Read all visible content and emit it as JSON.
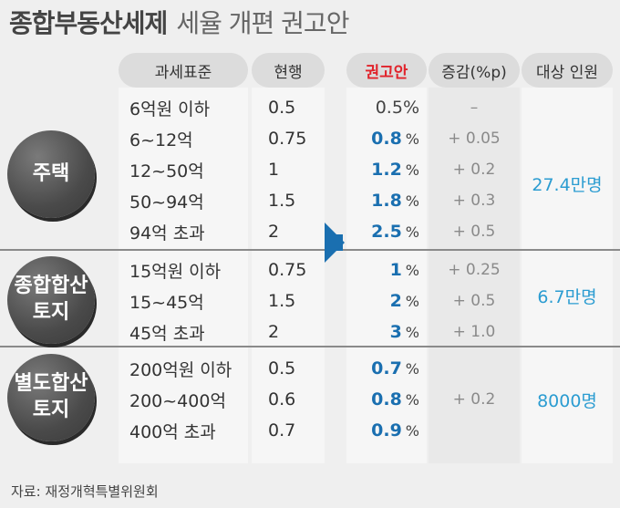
{
  "title": {
    "main": "종합부동산세제",
    "rest": "세율 개편 권고안"
  },
  "source": "자료: 재정개혁특별위원회",
  "headers": {
    "bracket": "과세표준",
    "current": "현행",
    "proposal": "권고안",
    "change": "증감(%p)",
    "target": "대상 인원"
  },
  "groups": [
    {
      "label_lines": [
        "주택"
      ],
      "target": "27.4만명",
      "rows": [
        {
          "bracket": "6억원 이하",
          "current": "0.5",
          "proposal": "0.5",
          "proposal_highlight": false,
          "change": "–"
        },
        {
          "bracket": "6~12억",
          "current": "0.75",
          "proposal": "0.8",
          "proposal_highlight": true,
          "change": "+ 0.05"
        },
        {
          "bracket": "12~50억",
          "current": "1",
          "proposal": "1.2",
          "proposal_highlight": true,
          "change": "+ 0.2"
        },
        {
          "bracket": "50~94억",
          "current": "1.5",
          "proposal": "1.8",
          "proposal_highlight": true,
          "change": "+ 0.3"
        },
        {
          "bracket": "94억 초과",
          "current": "2",
          "proposal": "2.5",
          "proposal_highlight": true,
          "change": "+ 0.5"
        }
      ]
    },
    {
      "label_lines": [
        "종합합산",
        "토지"
      ],
      "target": "6.7만명",
      "rows": [
        {
          "bracket": "15억원 이하",
          "current": "0.75",
          "proposal": "1",
          "proposal_highlight": true,
          "change": "+ 0.25"
        },
        {
          "bracket": "15~45억",
          "current": "1.5",
          "proposal": "2",
          "proposal_highlight": true,
          "change": "+ 0.5"
        },
        {
          "bracket": "45억 초과",
          "current": "2",
          "proposal": "3",
          "proposal_highlight": true,
          "change": "+ 1.0"
        }
      ]
    },
    {
      "label_lines": [
        "별도합산",
        "토지"
      ],
      "target": "8000명",
      "change_shared": "+ 0.2",
      "rows": [
        {
          "bracket": "200억원 이하",
          "current": "0.5",
          "proposal": "0.7",
          "proposal_highlight": true
        },
        {
          "bracket": "200~400억",
          "current": "0.6",
          "proposal": "0.8",
          "proposal_highlight": true
        },
        {
          "bracket": "400억 초과",
          "current": "0.7",
          "proposal": "0.9",
          "proposal_highlight": true
        }
      ]
    }
  ],
  "percent_sign": "%",
  "colors": {
    "accent_blue": "#1a6fb0",
    "accent_red": "#e1232b",
    "target_blue": "#2b9cd1"
  }
}
